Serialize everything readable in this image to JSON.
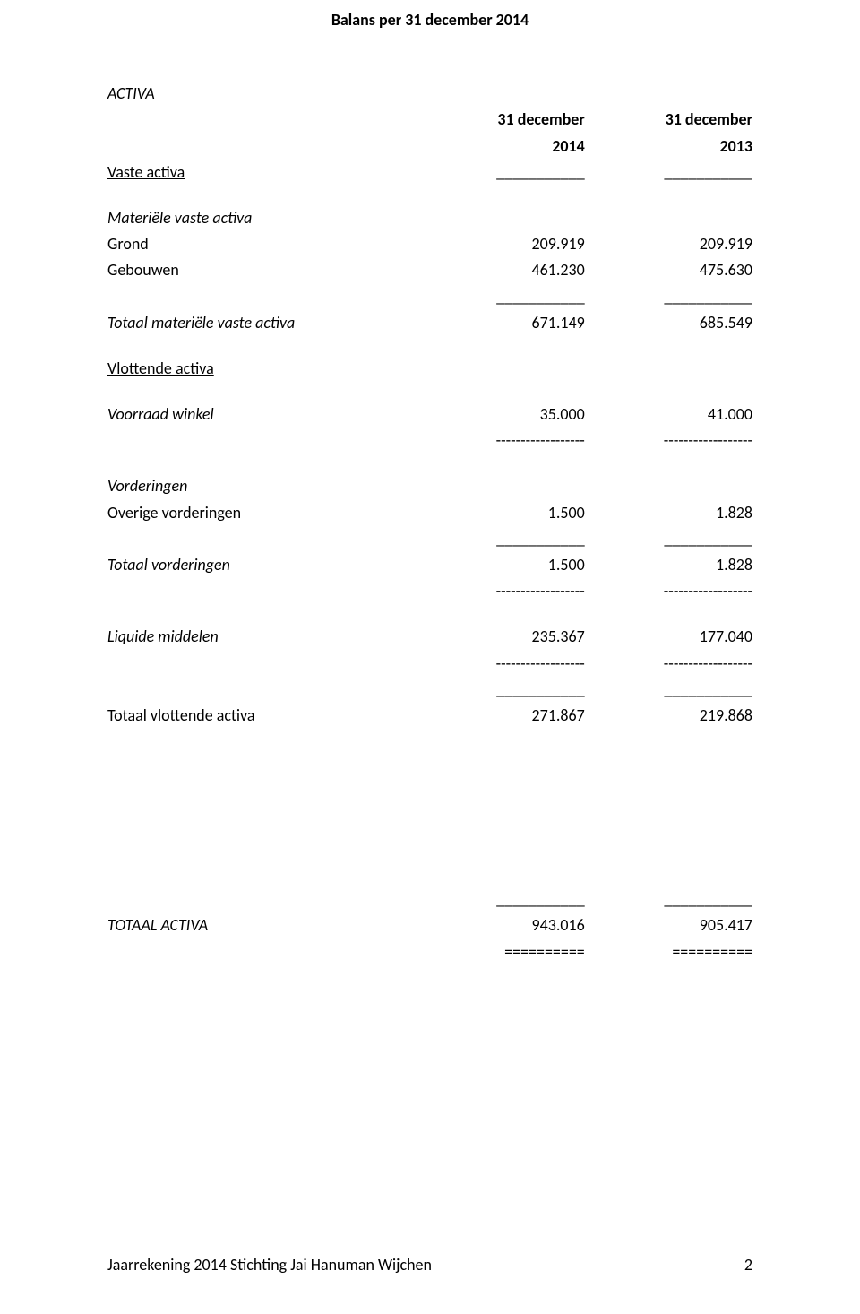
{
  "title": "Balans per 31 december 2014",
  "headers": {
    "col1_line1": "31 december",
    "col1_line2": "2014",
    "col2_line1": "31 december",
    "col2_line2": "2013"
  },
  "sections": {
    "activa": "ACTIVA",
    "vaste_activa": "Vaste activa",
    "materiele_vaste_activa": "Materiële vaste activa",
    "grond": {
      "label": "Grond",
      "v1": "209.919",
      "v2": "209.919"
    },
    "gebouwen": {
      "label": "Gebouwen",
      "v1": "461.230",
      "v2": "475.630"
    },
    "totaal_mva": {
      "label": "Totaal materiële vaste activa",
      "v1": "671.149",
      "v2": "685.549"
    },
    "vlottende_activa": "Vlottende activa",
    "voorraad_winkel": {
      "label": "Voorraad winkel",
      "v1": "35.000",
      "v2": "41.000"
    },
    "vorderingen": "Vorderingen",
    "overige_vorderingen": {
      "label": "Overige vorderingen",
      "v1": "1.500",
      "v2": "1.828"
    },
    "totaal_vorderingen": {
      "label": "Totaal vorderingen",
      "v1": "1.500",
      "v2": "1.828"
    },
    "liquide_middelen": {
      "label": "Liquide middelen",
      "v1": "235.367",
      "v2": "177.040"
    },
    "totaal_vlottende": {
      "label": "Totaal vlottende activa",
      "v1": "271.867",
      "v2": "219.868"
    },
    "totaal_activa": {
      "label": "TOTAAL ACTIVA",
      "v1": "943.016",
      "v2": "905.417"
    }
  },
  "separators": {
    "underline": "___________",
    "dash": "------------------",
    "double": "=========="
  },
  "footer": {
    "text": "Jaarrekening 2014 Stichting Jai Hanuman Wijchen",
    "page": "2"
  }
}
